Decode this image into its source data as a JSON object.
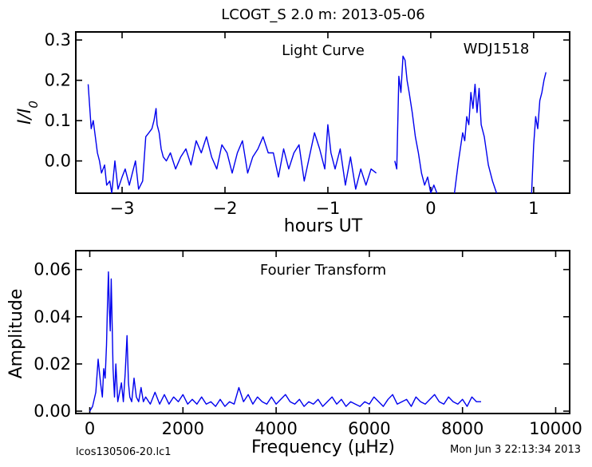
{
  "header": {
    "title": "LCOGT_S 2.0 m:  2013-05-06"
  },
  "footer": {
    "left": "lcos130506-20.lc1",
    "right": "Mon Jun  3 22:13:34 2013"
  },
  "colors": {
    "series": "#0000ee",
    "axes": "#000000"
  },
  "chart_data": [
    {
      "type": "line",
      "annotation": "Light Curve",
      "object_label": "WDJ1518",
      "xlabel": "hours UT",
      "ylabel": "I/I0",
      "xlim": [
        -3.45,
        1.35
      ],
      "ylim": [
        -0.08,
        0.32
      ],
      "xticks": [
        -3,
        -2,
        -1,
        0,
        1
      ],
      "yticks": [
        0.0,
        0.1,
        0.2,
        0.3
      ],
      "xtick_labels": [
        "−3",
        "−2",
        "−1",
        "0",
        "1"
      ],
      "ytick_labels": [
        "0.0",
        "0.1",
        "0.2",
        "0.3"
      ],
      "series": [
        {
          "segments": [
            {
              "x": [
                -3.33,
                -3.3,
                -3.28,
                -3.26,
                -3.24,
                -3.22,
                -3.2,
                -3.17,
                -3.15,
                -3.12,
                -3.1,
                -3.07,
                -3.04,
                -3.0,
                -2.97,
                -2.93,
                -2.9,
                -2.87,
                -2.84,
                -2.8,
                -2.77,
                -2.74,
                -2.71,
                -2.69,
                -2.67,
                -2.66,
                -2.64,
                -2.62,
                -2.6,
                -2.57,
                -2.53,
                -2.48,
                -2.43,
                -2.38,
                -2.33,
                -2.28,
                -2.23,
                -2.18,
                -2.13,
                -2.08,
                -2.03,
                -1.98,
                -1.93,
                -1.88,
                -1.83,
                -1.78,
                -1.73,
                -1.68,
                -1.63,
                -1.58,
                -1.53,
                -1.48,
                -1.43,
                -1.38,
                -1.33,
                -1.28,
                -1.23,
                -1.18,
                -1.13,
                -1.08,
                -1.03,
                -1.0,
                -0.97,
                -0.93,
                -0.88,
                -0.83,
                -0.78,
                -0.73,
                -0.68,
                -0.63,
                -0.58,
                -0.53
              ],
              "y": [
                0.19,
                0.08,
                0.1,
                0.06,
                0.02,
                0.0,
                -0.03,
                -0.01,
                -0.06,
                -0.05,
                -0.08,
                0.0,
                -0.07,
                -0.04,
                -0.02,
                -0.06,
                -0.03,
                0.0,
                -0.07,
                -0.05,
                0.06,
                0.07,
                0.08,
                0.1,
                0.13,
                0.09,
                0.07,
                0.03,
                0.01,
                0.0,
                0.02,
                -0.02,
                0.01,
                0.03,
                -0.01,
                0.05,
                0.02,
                0.06,
                0.01,
                -0.02,
                0.04,
                0.02,
                -0.03,
                0.02,
                0.05,
                -0.03,
                0.01,
                0.03,
                0.06,
                0.02,
                0.02,
                -0.04,
                0.03,
                -0.02,
                0.02,
                0.04,
                -0.05,
                0.01,
                0.07,
                0.03,
                -0.02,
                0.09,
                0.02,
                -0.02,
                0.03,
                -0.06,
                0.01,
                -0.07,
                -0.02,
                -0.06,
                -0.02,
                -0.03
              ]
            },
            {
              "x": [
                -0.35,
                -0.33,
                -0.31,
                -0.29,
                -0.27,
                -0.25,
                -0.23,
                -0.21,
                -0.18,
                -0.15,
                -0.12,
                -0.09,
                -0.06,
                -0.03,
                0.0,
                0.03,
                0.06
              ],
              "y": [
                0.0,
                -0.02,
                0.21,
                0.17,
                0.26,
                0.25,
                0.2,
                0.17,
                0.12,
                0.06,
                0.02,
                -0.03,
                -0.06,
                -0.04,
                -0.08,
                -0.06,
                -0.08
              ]
            },
            {
              "x": [
                0.23,
                0.27,
                0.31,
                0.33,
                0.35,
                0.37,
                0.39,
                0.41,
                0.43,
                0.45,
                0.47,
                0.49,
                0.52,
                0.56,
                0.6,
                0.64
              ],
              "y": [
                -0.08,
                0.0,
                0.07,
                0.05,
                0.11,
                0.09,
                0.17,
                0.13,
                0.19,
                0.12,
                0.18,
                0.09,
                0.06,
                -0.01,
                -0.05,
                -0.08
              ]
            },
            {
              "x": [
                0.98,
                1.0,
                1.02,
                1.04,
                1.06,
                1.08,
                1.1,
                1.12
              ],
              "y": [
                -0.08,
                0.04,
                0.11,
                0.08,
                0.15,
                0.17,
                0.2,
                0.22
              ]
            }
          ]
        }
      ]
    },
    {
      "type": "line",
      "annotation": "Fourier Transform",
      "xlabel": "Frequency (μHz)",
      "ylabel": "Amplitude",
      "xlim": [
        -300,
        10300
      ],
      "ylim": [
        -0.001,
        0.068
      ],
      "xticks": [
        0,
        2000,
        4000,
        6000,
        8000,
        10000
      ],
      "yticks": [
        0.0,
        0.02,
        0.04,
        0.06
      ],
      "xtick_labels": [
        "0",
        "2000",
        "4000",
        "6000",
        "8000",
        "10000"
      ],
      "ytick_labels": [
        "0.00",
        "0.02",
        "0.04",
        "0.06"
      ],
      "series": [
        {
          "x": [
            0,
            60,
            130,
            180,
            230,
            270,
            300,
            330,
            360,
            380,
            400,
            420,
            440,
            460,
            480,
            500,
            530,
            560,
            600,
            640,
            680,
            720,
            760,
            800,
            830,
            860,
            900,
            950,
            1000,
            1050,
            1100,
            1150,
            1200,
            1300,
            1400,
            1500,
            1600,
            1700,
            1800,
            1900,
            2000,
            2100,
            2200,
            2300,
            2400,
            2500,
            2600,
            2700,
            2800,
            2900,
            3000,
            3100,
            3200,
            3300,
            3400,
            3500,
            3600,
            3700,
            3800,
            3900,
            4000,
            4100,
            4200,
            4300,
            4400,
            4500,
            4600,
            4700,
            4800,
            4900,
            5000,
            5100,
            5200,
            5300,
            5400,
            5500,
            5600,
            5700,
            5800,
            5900,
            6000,
            6100,
            6200,
            6300,
            6400,
            6500,
            6600,
            6700,
            6800,
            6900,
            7000,
            7100,
            7200,
            7300,
            7400,
            7500,
            7600,
            7700,
            7800,
            7900,
            8000,
            8100,
            8200,
            8300,
            8400
          ],
          "y": [
            0.0,
            0.002,
            0.008,
            0.022,
            0.012,
            0.006,
            0.018,
            0.014,
            0.028,
            0.045,
            0.059,
            0.044,
            0.034,
            0.056,
            0.038,
            0.018,
            0.006,
            0.02,
            0.004,
            0.008,
            0.012,
            0.004,
            0.016,
            0.032,
            0.012,
            0.006,
            0.004,
            0.014,
            0.006,
            0.004,
            0.01,
            0.004,
            0.006,
            0.003,
            0.008,
            0.003,
            0.007,
            0.003,
            0.006,
            0.004,
            0.007,
            0.003,
            0.005,
            0.003,
            0.006,
            0.003,
            0.004,
            0.002,
            0.005,
            0.002,
            0.004,
            0.003,
            0.01,
            0.004,
            0.007,
            0.003,
            0.006,
            0.004,
            0.003,
            0.006,
            0.003,
            0.005,
            0.007,
            0.004,
            0.003,
            0.005,
            0.002,
            0.004,
            0.003,
            0.005,
            0.002,
            0.004,
            0.006,
            0.003,
            0.005,
            0.002,
            0.004,
            0.003,
            0.002,
            0.004,
            0.003,
            0.006,
            0.004,
            0.002,
            0.005,
            0.007,
            0.003,
            0.004,
            0.005,
            0.002,
            0.006,
            0.004,
            0.003,
            0.005,
            0.007,
            0.004,
            0.003,
            0.006,
            0.004,
            0.003,
            0.005,
            0.002,
            0.006,
            0.004,
            0.004
          ]
        }
      ]
    }
  ]
}
